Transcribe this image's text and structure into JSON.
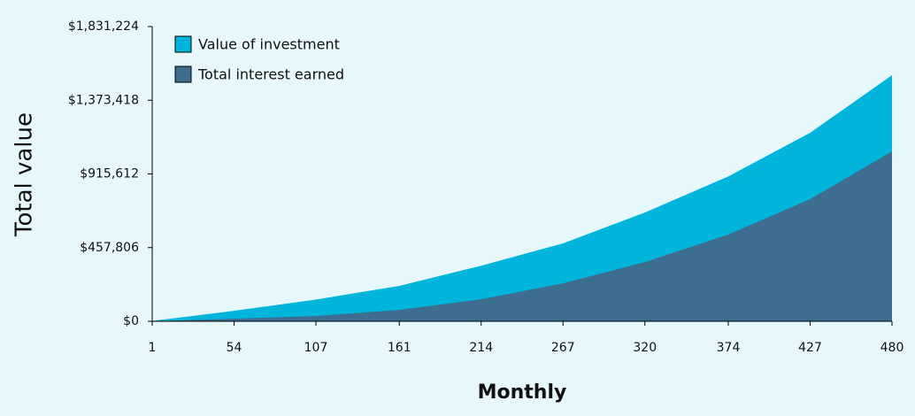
{
  "chart_data": {
    "type": "area",
    "x_label": "Monthly",
    "y_label": "Total value",
    "x": [
      1,
      54,
      107,
      161,
      214,
      267,
      320,
      374,
      427,
      480
    ],
    "series": [
      {
        "name": "Value of investment",
        "color": "#00b4dc",
        "values": [
          2000,
          65000,
          135000,
          220000,
          345000,
          484000,
          676000,
          900000,
          1171000,
          1529000
        ]
      },
      {
        "name": "Total interest earned",
        "color": "#3d6e8f",
        "values": [
          0,
          16000,
          33000,
          71000,
          137000,
          236000,
          368000,
          539000,
          759000,
          1056000
        ]
      }
    ],
    "xlim": [
      1,
      480
    ],
    "xticks": [
      1,
      54,
      107,
      161,
      214,
      267,
      320,
      374,
      427,
      480
    ],
    "ylim": [
      0,
      1831224
    ],
    "yticks": [
      {
        "value": 0,
        "label": "$0"
      },
      {
        "value": 457806,
        "label": "$457,806"
      },
      {
        "value": 915612,
        "label": "$915,612"
      },
      {
        "value": 1373418,
        "label": "$1,373,418"
      },
      {
        "value": 1831224,
        "label": "$1,831,224"
      }
    ],
    "legend": "top-left"
  }
}
